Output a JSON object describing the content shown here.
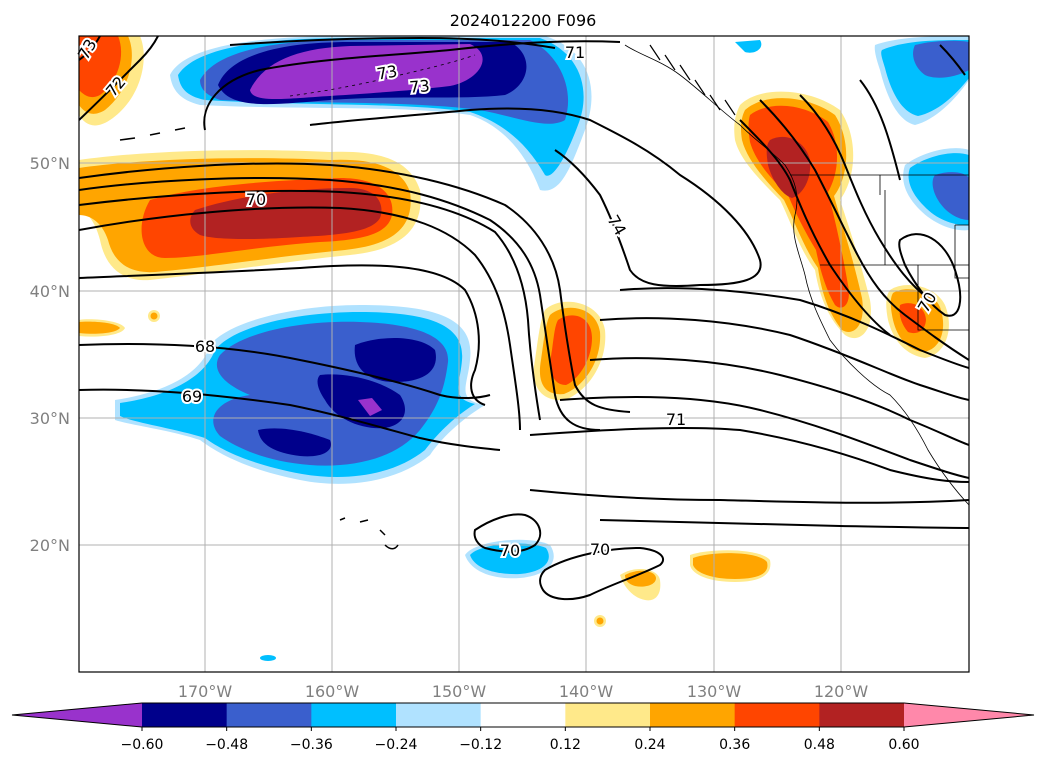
{
  "title": "2024012200 F096",
  "lon_labels": [
    "170°W",
    "160°W",
    "150°W",
    "140°W",
    "130°W",
    "120°W"
  ],
  "lat_labels": [
    "50°N",
    "40°N",
    "30°N",
    "20°N"
  ],
  "colorbar": {
    "ticks": [
      "−0.60",
      "−0.48",
      "−0.36",
      "−0.24",
      "−0.12",
      "0.12",
      "0.24",
      "0.36",
      "0.48",
      "0.60"
    ],
    "colors": [
      "#9932cc",
      "#00008b",
      "#3a5fcd",
      "#00bfff",
      "#b0e2ff",
      "#ffffff",
      "#ffe98a",
      "#ffa500",
      "#ff4500",
      "#b22222",
      "#ff88aa"
    ]
  },
  "contour_labels": [
    "73",
    "72",
    "71",
    "73",
    "73",
    "74",
    "70",
    "68",
    "69",
    "71",
    "70",
    "70",
    "70"
  ]
}
